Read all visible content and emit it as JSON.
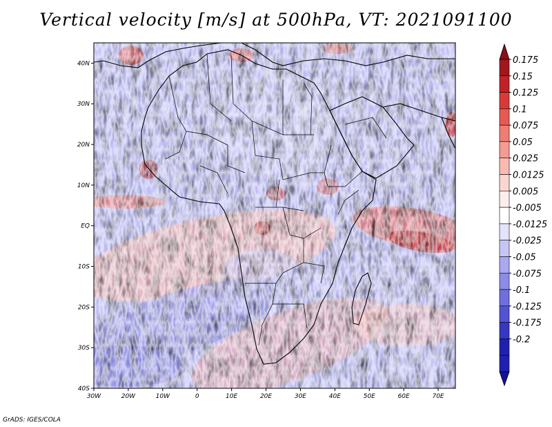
{
  "title": "Vertical velocity [m/s] at 500hPa, VT: 2021091100",
  "credit": "GrADS: IGES/COLA",
  "map": {
    "region": "Africa",
    "lon_range": [
      -30,
      75
    ],
    "lat_range": [
      -40,
      45
    ],
    "lat_ticks": [
      {
        "value": 40,
        "label": "40N"
      },
      {
        "value": 30,
        "label": "30N"
      },
      {
        "value": 20,
        "label": "20N"
      },
      {
        "value": 10,
        "label": "10N"
      },
      {
        "value": 0,
        "label": "EQ"
      },
      {
        "value": -10,
        "label": "10S"
      },
      {
        "value": -20,
        "label": "20S"
      },
      {
        "value": -30,
        "label": "30S"
      },
      {
        "value": -40,
        "label": "40S"
      }
    ],
    "lon_ticks": [
      {
        "value": -30,
        "label": "30W"
      },
      {
        "value": -20,
        "label": "20W"
      },
      {
        "value": -10,
        "label": "10W"
      },
      {
        "value": 0,
        "label": "0"
      },
      {
        "value": 10,
        "label": "10E"
      },
      {
        "value": 20,
        "label": "20E"
      },
      {
        "value": 30,
        "label": "30E"
      },
      {
        "value": 40,
        "label": "40E"
      },
      {
        "value": 50,
        "label": "50E"
      },
      {
        "value": 60,
        "label": "60E"
      },
      {
        "value": 70,
        "label": "70E"
      }
    ]
  },
  "colorbar": {
    "levels": [
      {
        "label": "0.175",
        "color": "#a0181e"
      },
      {
        "label": "0.15",
        "color": "#c32128"
      },
      {
        "label": "0.125",
        "color": "#d93a38"
      },
      {
        "label": "0.1",
        "color": "#e65a52"
      },
      {
        "label": "0.075",
        "color": "#ef7d74"
      },
      {
        "label": "0.05",
        "color": "#f49c93"
      },
      {
        "label": "0.025",
        "color": "#f8bab3"
      },
      {
        "label": "0.0125",
        "color": "#fbd6d1"
      },
      {
        "label": "0.005",
        "color": "#fdeeec"
      },
      {
        "label": "-0.005",
        "color": "#ffffff"
      },
      {
        "label": "-0.0125",
        "color": "#e3e3fb"
      },
      {
        "label": "-0.025",
        "color": "#c6c6f5"
      },
      {
        "label": "-0.05",
        "color": "#a9a9ef"
      },
      {
        "label": "-0.075",
        "color": "#8c8ce7"
      },
      {
        "label": "-0.1",
        "color": "#6f6fdd"
      },
      {
        "label": "-0.125",
        "color": "#5353d2"
      },
      {
        "label": "-0.175",
        "color": "#3737c3"
      },
      {
        "label": "-0.2",
        "color": "#2020b0"
      }
    ],
    "top_color": "#8a1014",
    "bottom_color": "#14129a"
  }
}
